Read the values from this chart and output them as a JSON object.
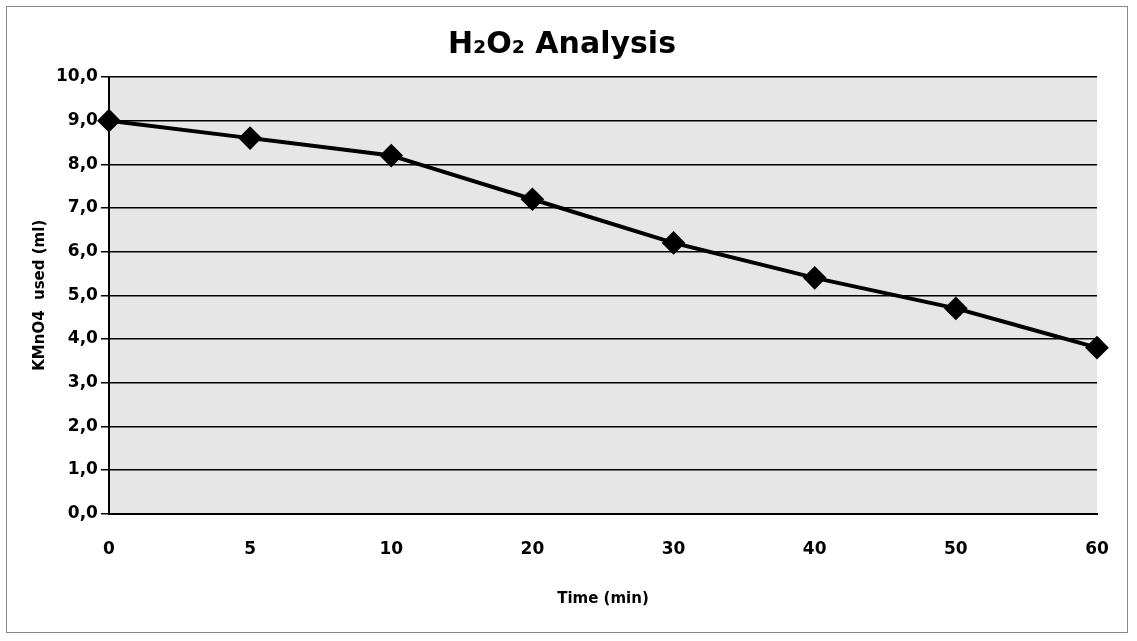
{
  "chart_data": {
    "type": "line",
    "title": "H₂O₂ Analysis",
    "xlabel": "Time (min)",
    "ylabel": "KMnO4  used (ml)",
    "categories": [
      "0",
      "5",
      "10",
      "20",
      "30",
      "40",
      "50",
      "60"
    ],
    "series": [
      {
        "color": "#000000",
        "values": [
          9.0,
          8.6,
          8.2,
          7.2,
          6.2,
          5.4,
          4.7,
          3.8
        ]
      }
    ],
    "ylim": [
      0,
      10
    ],
    "yticks": [
      {
        "value": 0,
        "label": "0,0"
      },
      {
        "value": 1,
        "label": "1,0"
      },
      {
        "value": 2,
        "label": "2,0"
      },
      {
        "value": 3,
        "label": "3,0"
      },
      {
        "value": 4,
        "label": "4,0"
      },
      {
        "value": 5,
        "label": "5,0"
      },
      {
        "value": 6,
        "label": "6,0"
      },
      {
        "value": 7,
        "label": "7,0"
      },
      {
        "value": 8,
        "label": "8,0"
      },
      {
        "value": 9,
        "label": "9,0"
      },
      {
        "value": 10,
        "label": "10,0"
      }
    ],
    "grid": "y",
    "legend": false,
    "marker": "diamond",
    "line_style": "solid"
  }
}
